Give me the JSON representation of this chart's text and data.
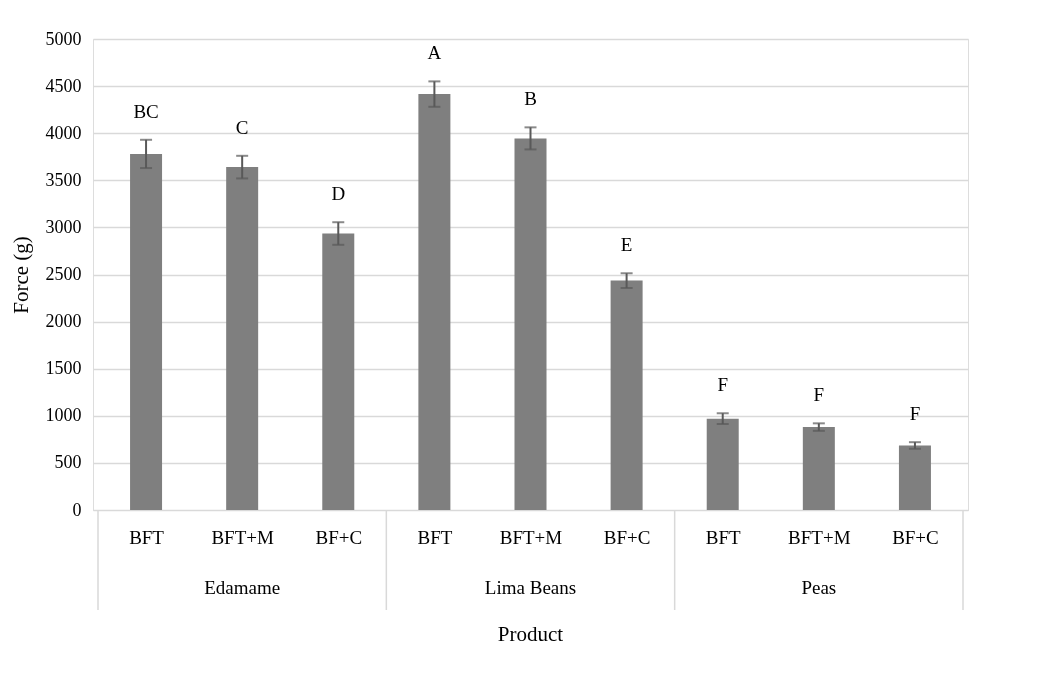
{
  "chart_data": {
    "type": "bar",
    "xlabel": "Product",
    "ylabel": "Force (g)",
    "categories": [
      "BFT",
      "BFT+M",
      "BF+C",
      "BFT",
      "BFT+M",
      "BF+C",
      "BFT",
      "BFT+M",
      "BF+C"
    ],
    "values": [
      3780,
      3640,
      2935,
      4415,
      3945,
      2435,
      970,
      880,
      685
    ],
    "errors": [
      150,
      120,
      120,
      135,
      117,
      78,
      57,
      40,
      35
    ],
    "value_labels": [
      "BC",
      "C",
      "D",
      "A",
      "B",
      "E",
      "F",
      "F",
      "F"
    ],
    "color": "#7f7f7f",
    "ylim": [
      0,
      5000
    ],
    "yticks": [
      0,
      500,
      1000,
      1500,
      2000,
      2500,
      3000,
      3500,
      4000,
      4500,
      5000
    ],
    "grid": "y",
    "annotations": [
      "Edamame",
      "Lima Beans",
      "Peas"
    ]
  }
}
